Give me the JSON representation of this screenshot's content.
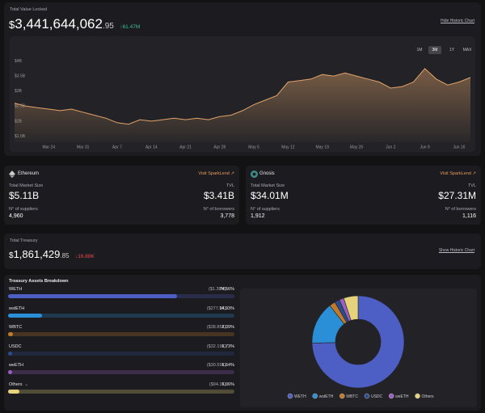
{
  "tvl": {
    "title": "Total Value Locked",
    "currency": "$",
    "amount": "3,441,644,062",
    "cents": ".95",
    "change": "↑61.47M",
    "link": "Hide Historic Chart",
    "ranges": [
      "1M",
      "3M",
      "1Y",
      "MAX"
    ],
    "active_range": "3M"
  },
  "markets": [
    {
      "name": "Ethereum",
      "link": "Visit SparkLend",
      "size_label": "Total Market Size",
      "size": "$5.11B",
      "tvl_label": "TVL",
      "tvl": "$3.41B",
      "suppliers_label": "N° of suppliers",
      "suppliers": "4,960",
      "borrowers_label": "N° of borrowers",
      "borrowers": "3,778"
    },
    {
      "name": "Gnosis",
      "link": "Visit SparkLend",
      "size_label": "Total Market Size",
      "size": "$34.01M",
      "tvl_label": "TVL",
      "tvl": "$27.31M",
      "suppliers_label": "N° of suppliers",
      "suppliers": "1,912",
      "borrowers_label": "N° of borrowers",
      "borrowers": "1,116"
    }
  ],
  "treasury": {
    "title": "Total Treasury",
    "currency": "$",
    "amount": "1,861,429",
    "cents": ".85",
    "change": "↓16.88K",
    "link": "Show Historic Chart"
  },
  "breakdown": {
    "title": "Treasury Assets Breakdown"
  },
  "chart_data": [
    {
      "type": "area",
      "color": "#e0a36a",
      "categories": [
        null,
        null,
        null,
        "Mar 24",
        null,
        null,
        "Mar 31",
        null,
        null,
        "Apr 7",
        null,
        null,
        "Apr 14",
        null,
        null,
        "Apr 21",
        null,
        null,
        "Apr 28",
        null,
        null,
        "May 5",
        null,
        null,
        "May 12",
        null,
        null,
        "May 19",
        null,
        null,
        "May 26",
        null,
        null,
        "Jun 2",
        null,
        null,
        "Jun 9",
        null,
        null,
        "Jun 16",
        null
      ],
      "values": [
        2.6,
        2.5,
        2.45,
        2.4,
        2.35,
        2.4,
        2.3,
        2.2,
        2.1,
        1.95,
        1.9,
        2.05,
        2.0,
        2.05,
        2.1,
        2.05,
        2.1,
        2.05,
        2.15,
        2.2,
        2.35,
        2.55,
        2.7,
        2.85,
        3.3,
        3.35,
        3.4,
        3.55,
        3.5,
        3.6,
        3.5,
        3.4,
        3.3,
        3.1,
        3.15,
        3.3,
        3.75,
        3.4,
        3.2,
        3.3,
        3.45
      ],
      "ylim": [
        1.3,
        4.2
      ],
      "yticks": [
        {
          "value": 1.5,
          "label": "$1.5B"
        },
        {
          "value": 2,
          "label": "$2B"
        },
        {
          "value": 2.5,
          "label": "$2.5B"
        },
        {
          "value": 3,
          "label": "$3B"
        },
        {
          "value": 3.5,
          "label": "$3.5B"
        },
        {
          "value": 4,
          "label": "$4B"
        }
      ],
      "grid": false
    },
    {
      "type": "pie",
      "categories": [
        "WETH",
        "wstETH",
        "WBTC",
        "USDC",
        "weETH",
        "Others"
      ],
      "values": [
        74.56,
        14.93,
        2.09,
        1.73,
        1.64,
        5.06
      ],
      "value_labels": [
        "74.56%",
        "14.93%",
        "2.09%",
        "1.73%",
        "1.64%",
        "5.06%"
      ],
      "amounts": [
        "($1.39M)",
        "($277.9K)",
        "($38.85K)",
        "($32.19K)",
        "($30.59K)",
        "($94.1K)"
      ],
      "colors": [
        "#4d5fc4",
        "#2a8fd6",
        "#c07a2a",
        "#2b4c8c",
        "#9b5fc0",
        "#e6d27a"
      ]
    }
  ]
}
